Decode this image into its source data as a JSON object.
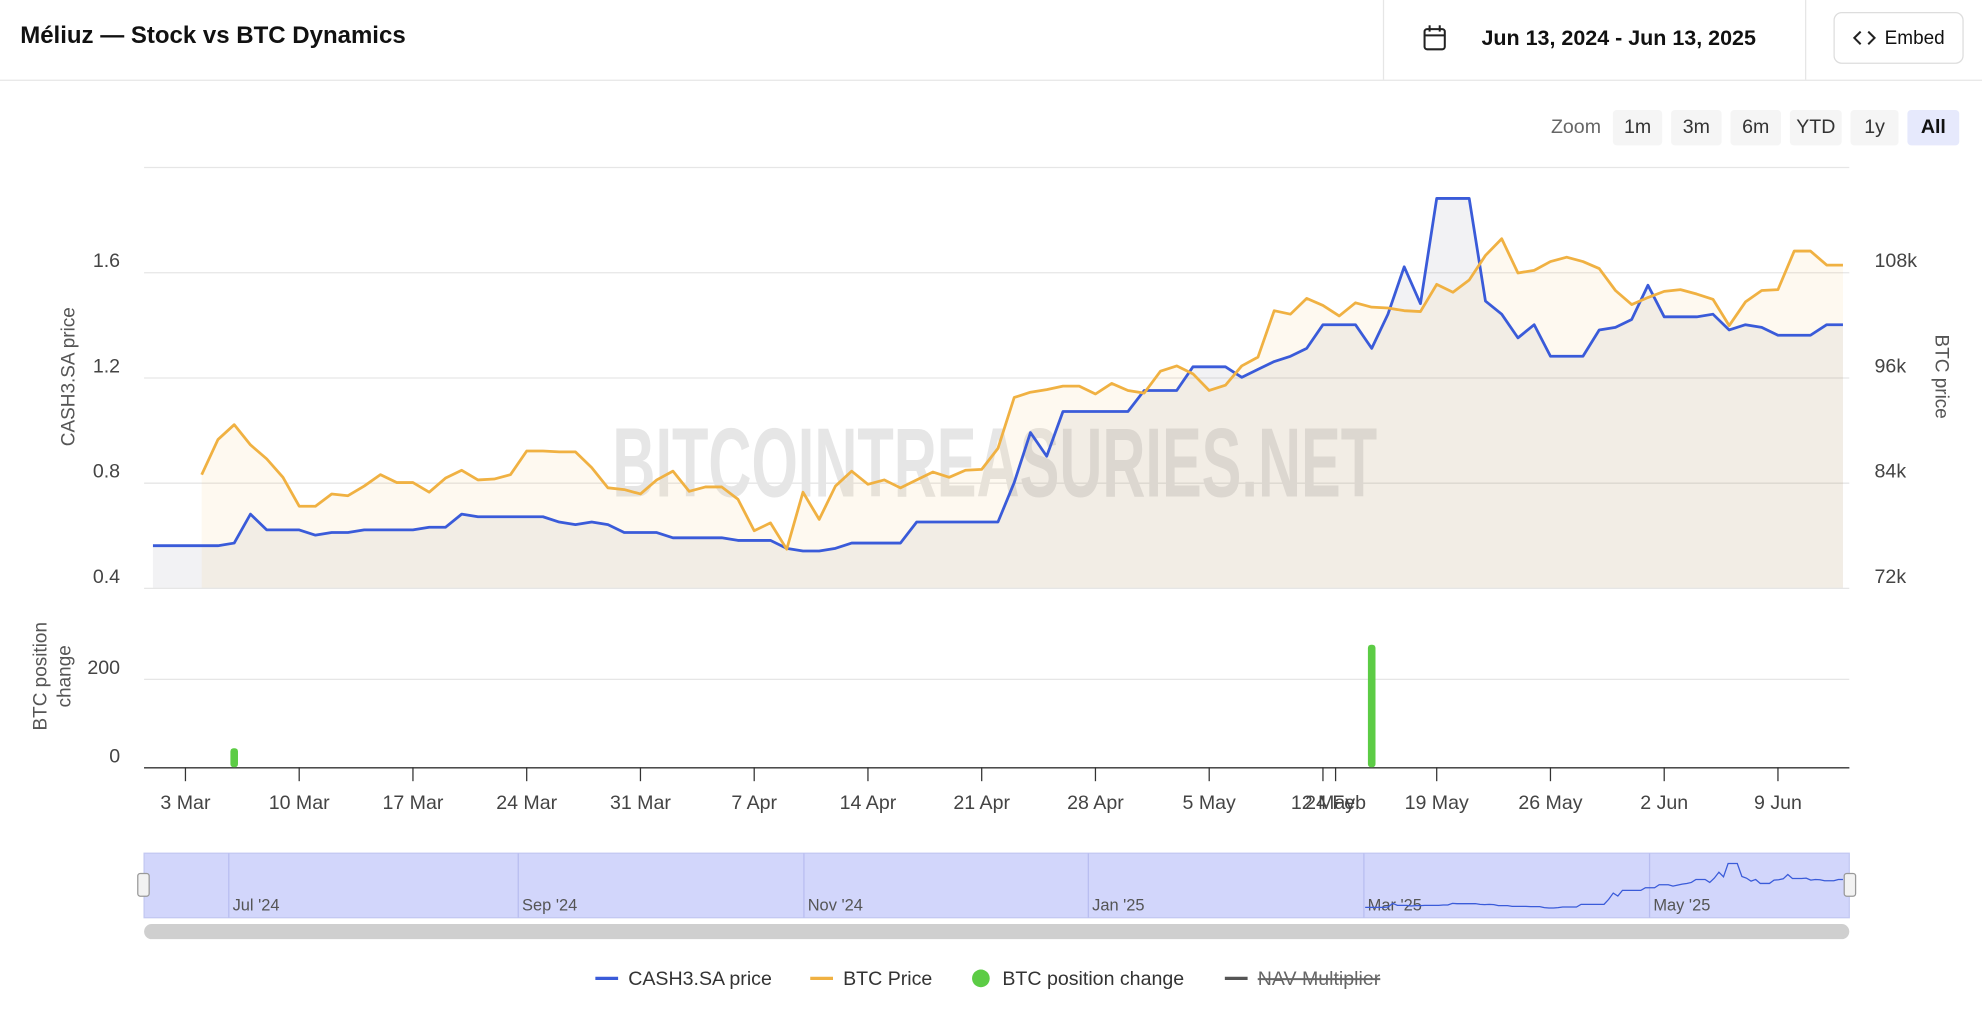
{
  "header": {
    "title": "Méliuz — Stock vs BTC Dynamics",
    "date_range": "Jun 13, 2024 - Jun 13, 2025",
    "embed": "Embed"
  },
  "zoom": {
    "label": "Zoom",
    "buttons": [
      "1m",
      "3m",
      "6m",
      "YTD",
      "1y",
      "All"
    ],
    "active": 5
  },
  "chart_data": {
    "type": "line",
    "watermark": "BITCOINTREASURIES.NET",
    "y_label": "CASH3.SA price",
    "y2_label": "BTC price",
    "y3_label": [
      "BTC position",
      "change"
    ],
    "categories": [
      null,
      null,
      "3 Mar",
      null,
      null,
      null,
      null,
      null,
      null,
      "10 Mar",
      null,
      null,
      null,
      null,
      null,
      null,
      "17 Mar",
      null,
      null,
      null,
      null,
      null,
      null,
      "24 Mar",
      null,
      null,
      null,
      null,
      null,
      null,
      "31 Mar",
      null,
      null,
      null,
      null,
      null,
      null,
      "7 Apr",
      null,
      null,
      null,
      null,
      null,
      null,
      "14 Apr",
      null,
      null,
      null,
      null,
      null,
      null,
      "21 Apr",
      null,
      null,
      null,
      null,
      null,
      null,
      "28 Apr",
      null,
      null,
      null,
      null,
      null,
      null,
      "5 May",
      null,
      null,
      null,
      null,
      null,
      null,
      "12 May",
      null,
      null,
      null,
      null,
      null,
      null,
      "19 May",
      null,
      null,
      null,
      null,
      null,
      null,
      "26 May",
      null,
      null,
      null,
      null,
      null,
      null,
      "2 Jun",
      null,
      null,
      null,
      null,
      null,
      null,
      "9 Jun",
      null,
      null,
      null,
      null
    ],
    "x_overlap_label": "24 Feb",
    "ylim": [
      0.4,
      2.0
    ],
    "yticks": [
      0.4,
      0.8,
      1.2,
      1.6
    ],
    "y2lim": [
      72000,
      120000
    ],
    "y2ticks": [
      {
        "value": 72000,
        "label": "72k"
      },
      {
        "value": 84000,
        "label": "84k"
      },
      {
        "value": 96000,
        "label": "96k"
      },
      {
        "value": 108000,
        "label": "108k"
      }
    ],
    "y3lim": [
      0,
      400
    ],
    "y3ticks": [
      0,
      200
    ],
    "grid": true,
    "series": [
      {
        "name": "CASH3.SA price",
        "color": "#3a5bd9",
        "axis": "y",
        "values": [
          0.56,
          0.56,
          0.56,
          0.56,
          0.56,
          0.57,
          0.68,
          0.62,
          0.62,
          0.62,
          0.6,
          0.61,
          0.61,
          0.62,
          0.62,
          0.62,
          0.62,
          0.63,
          0.63,
          0.68,
          0.67,
          0.67,
          0.67,
          0.67,
          0.67,
          0.65,
          0.64,
          0.65,
          0.64,
          0.61,
          0.61,
          0.61,
          0.59,
          0.59,
          0.59,
          0.59,
          0.58,
          0.58,
          0.58,
          0.55,
          0.54,
          0.54,
          0.55,
          0.57,
          0.57,
          0.57,
          0.57,
          0.65,
          0.65,
          0.65,
          0.65,
          0.65,
          0.65,
          0.8,
          0.99,
          0.9,
          1.07,
          1.07,
          1.07,
          1.07,
          1.07,
          1.15,
          1.15,
          1.15,
          1.24,
          1.24,
          1.24,
          1.2,
          1.23,
          1.26,
          1.28,
          1.31,
          1.4,
          1.4,
          1.4,
          1.31,
          1.44,
          1.62,
          1.48,
          1.88,
          1.88,
          1.88,
          1.49,
          1.44,
          1.35,
          1.4,
          1.28,
          1.28,
          1.28,
          1.38,
          1.39,
          1.42,
          1.55,
          1.43,
          1.43,
          1.43,
          1.44,
          1.38,
          1.4,
          1.39,
          1.36,
          1.36,
          1.36,
          1.4,
          1.4
        ]
      },
      {
        "name": "BTC Price",
        "color": "#f0b142",
        "axis": "y2",
        "values": [
          null,
          null,
          null,
          84900,
          88900,
          90600,
          88300,
          86700,
          84600,
          81300,
          81300,
          82700,
          82500,
          83600,
          84900,
          84000,
          84000,
          82900,
          84500,
          85400,
          84300,
          84400,
          84900,
          87600,
          87600,
          87500,
          87500,
          85700,
          83400,
          83200,
          82700,
          84300,
          85300,
          83000,
          83500,
          83500,
          82100,
          78500,
          79400,
          76400,
          82900,
          79800,
          83600,
          85300,
          83800,
          84300,
          83400,
          84300,
          85200,
          84600,
          85400,
          85500,
          87900,
          93700,
          94300,
          94600,
          95000,
          95000,
          94100,
          95300,
          94500,
          94200,
          96700,
          97300,
          96400,
          94500,
          95100,
          97300,
          98300,
          103600,
          103200,
          105000,
          104200,
          103000,
          104500,
          104000,
          103900,
          103600,
          103500,
          106600,
          105700,
          107100,
          109900,
          111800,
          107900,
          108200,
          109200,
          109700,
          109200,
          108400,
          105900,
          104300,
          105100,
          105800,
          106000,
          105500,
          104900,
          101900,
          104600,
          105900,
          106000,
          110400,
          110400,
          108800,
          108800
        ]
      },
      {
        "name": "BTC position change",
        "color": "#5ccc45",
        "axis": "y3",
        "type": "bar",
        "values": [
          null,
          null,
          null,
          null,
          null,
          43,
          null,
          null,
          null,
          null,
          null,
          null,
          null,
          null,
          null,
          null,
          null,
          null,
          null,
          null,
          null,
          null,
          null,
          null,
          null,
          null,
          null,
          null,
          null,
          null,
          null,
          null,
          null,
          null,
          null,
          null,
          null,
          null,
          null,
          null,
          null,
          null,
          null,
          null,
          null,
          null,
          null,
          null,
          null,
          null,
          null,
          null,
          null,
          null,
          null,
          null,
          null,
          null,
          null,
          null,
          null,
          null,
          null,
          null,
          null,
          null,
          null,
          null,
          null,
          null,
          null,
          null,
          null,
          null,
          null,
          277,
          null,
          null,
          null,
          null,
          null,
          null,
          null,
          null,
          null,
          null,
          null,
          null,
          null,
          null,
          null,
          null,
          null,
          null,
          null,
          null,
          null,
          null,
          null,
          null,
          null,
          null,
          null,
          null,
          null
        ]
      }
    ],
    "hidden_series": [
      {
        "name": "NAV Multiplier",
        "color": "#555555"
      }
    ],
    "navigator": {
      "labels": [
        "Jul '24",
        "Sep '24",
        "Nov '24",
        "Jan '25",
        "Mar '25",
        "May '25"
      ]
    }
  }
}
